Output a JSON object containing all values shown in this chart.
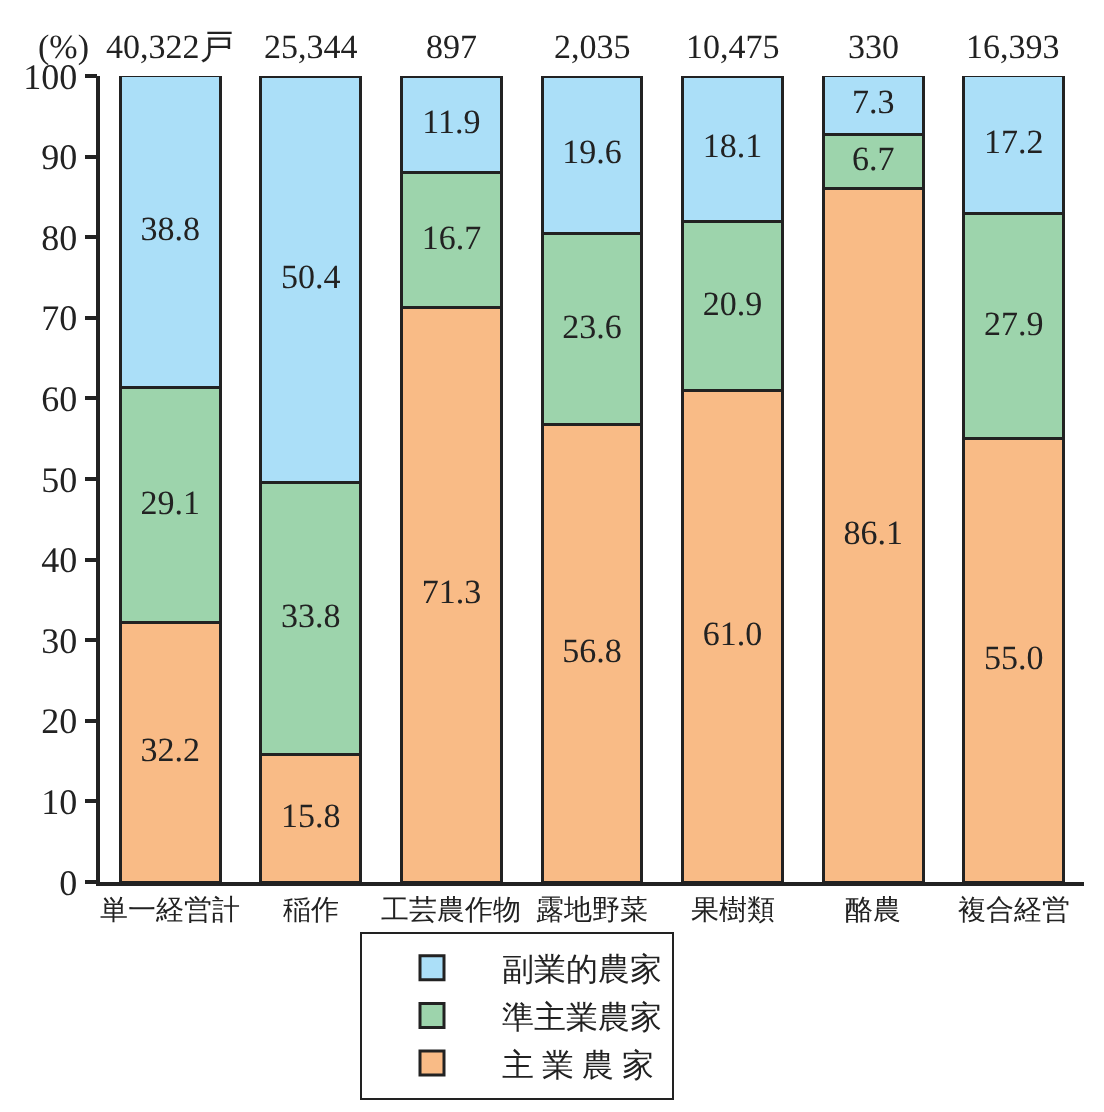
{
  "chart_data": {
    "type": "bar",
    "stacked": true,
    "ylabel": "(%)",
    "categories": [
      "単一経営計",
      "稲作",
      "工芸農作物",
      "露地野菜",
      "果樹類",
      "酪農",
      "複合経営"
    ],
    "series": [
      {
        "name": "主 業 農 家",
        "color": "#f9bb86",
        "values": [
          32.2,
          15.8,
          71.3,
          56.8,
          61.0,
          86.1,
          55.0
        ],
        "value_labels": [
          "32.2",
          "15.8",
          "71.3",
          "56.8",
          "61.0",
          "86.1",
          "55.0"
        ]
      },
      {
        "name": "準主業農家",
        "color": "#9dd4ac",
        "values": [
          29.1,
          33.8,
          16.7,
          23.6,
          20.9,
          6.7,
          27.9
        ],
        "value_labels": [
          "29.1",
          "33.8",
          "16.7",
          "23.6",
          "20.9",
          "6.7",
          "27.9"
        ]
      },
      {
        "name": "副業的農家",
        "color": "#abdff8",
        "values": [
          38.8,
          50.4,
          11.9,
          19.6,
          18.1,
          7.3,
          17.2
        ],
        "value_labels": [
          "38.8",
          "50.4",
          "11.9",
          "19.6",
          "18.1",
          "7.3",
          "17.2"
        ]
      }
    ],
    "annotations": [
      {
        "text": "40,322戸",
        "x": "単一経営計",
        "y": 100
      },
      {
        "text": "25,344",
        "x": "稲作",
        "y": 100
      },
      {
        "text": "897",
        "x": "工芸農作物",
        "y": 100
      },
      {
        "text": "2,035",
        "x": "露地野菜",
        "y": 100
      },
      {
        "text": "10,475",
        "x": "果樹類",
        "y": 100
      },
      {
        "text": "330",
        "x": "酪農",
        "y": 100
      },
      {
        "text": "16,393",
        "x": "複合経営",
        "y": 100
      }
    ],
    "ylim": [
      0,
      100
    ],
    "yticks": [
      0,
      10,
      20,
      30,
      40,
      50,
      60,
      70,
      80,
      90,
      100
    ],
    "grid": false,
    "legend": "bottom"
  }
}
